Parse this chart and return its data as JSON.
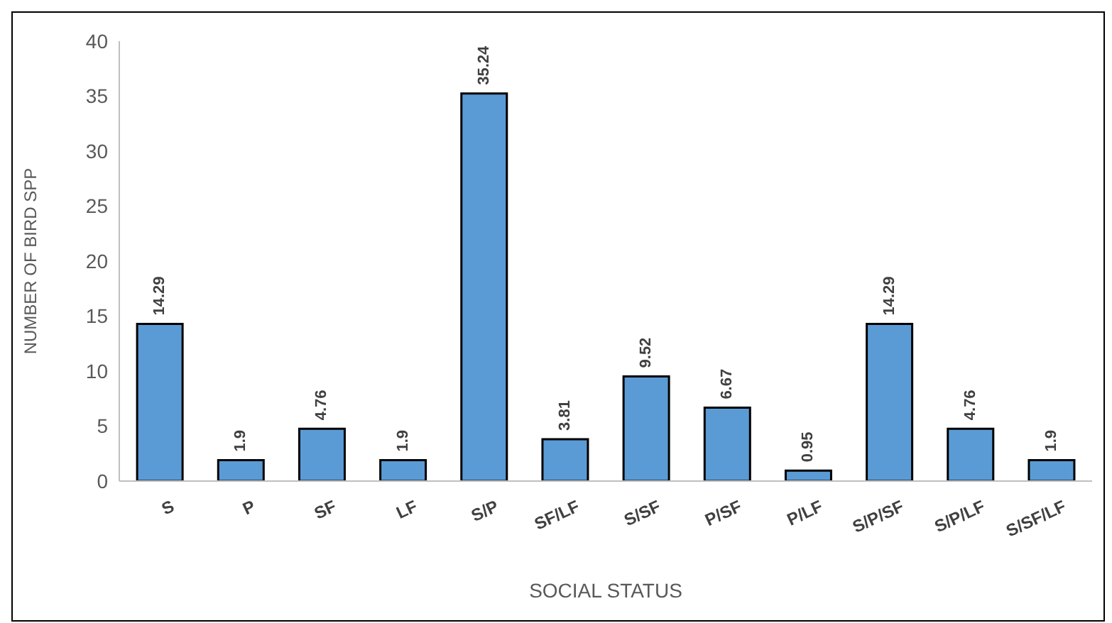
{
  "chart_data": {
    "type": "bar",
    "xlabel": "SOCIAL STATUS",
    "ylabel": "NUMBER OF BIRD SPP",
    "categories": [
      "S",
      "P",
      "SF",
      "LF",
      "S/P",
      "SF/LF",
      "S/SF",
      "P/SF",
      "P/LF",
      "S/P/SF",
      "S/P/LF",
      "S/SF/LF"
    ],
    "values": [
      14.29,
      1.9,
      4.76,
      1.9,
      35.24,
      3.81,
      9.52,
      6.67,
      0.95,
      14.29,
      4.76,
      1.9
    ],
    "color": "#5b9bd5",
    "ylim": [
      0,
      40
    ],
    "yticks": [
      0,
      5,
      10,
      15,
      20,
      25,
      30,
      35,
      40
    ],
    "grid": false,
    "data_labels": true
  }
}
